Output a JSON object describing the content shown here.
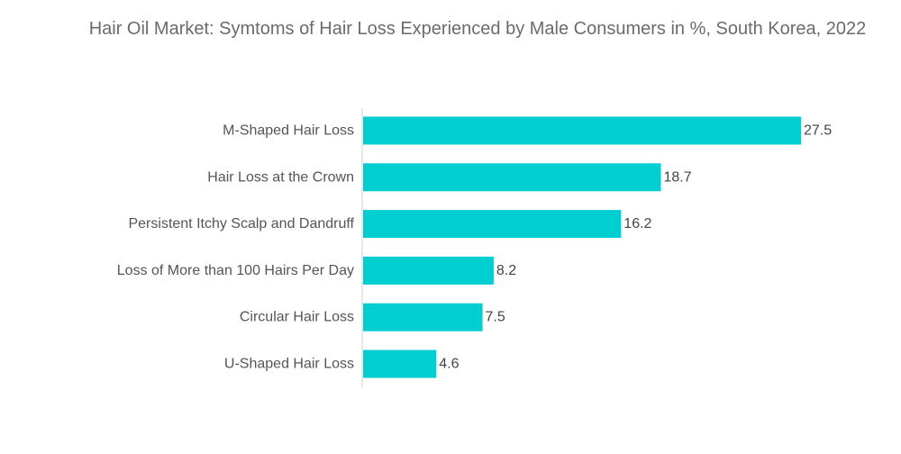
{
  "chart_data": {
    "type": "bar",
    "orientation": "horizontal",
    "title": "Hair Oil Market: Symtoms of Hair Loss Experienced by Male Consumers in %, South Korea, 2022",
    "categories": [
      "M-Shaped Hair Loss",
      "Hair Loss at the Crown",
      "Persistent Itchy Scalp and Dandruff",
      "Loss of More than 100 Hairs Per Day",
      "Circular Hair Loss",
      "U-Shaped Hair Loss"
    ],
    "values": [
      27.5,
      18.7,
      16.2,
      8.2,
      7.5,
      4.6
    ],
    "value_labels": [
      "27.5",
      "18.7",
      "16.2",
      "8.2",
      "7.5",
      "4.6"
    ],
    "xlim": [
      0,
      27.5
    ],
    "grid": false,
    "legend": "none",
    "bar_color": "#00CED1",
    "axis_color": "#d0d0d0"
  }
}
